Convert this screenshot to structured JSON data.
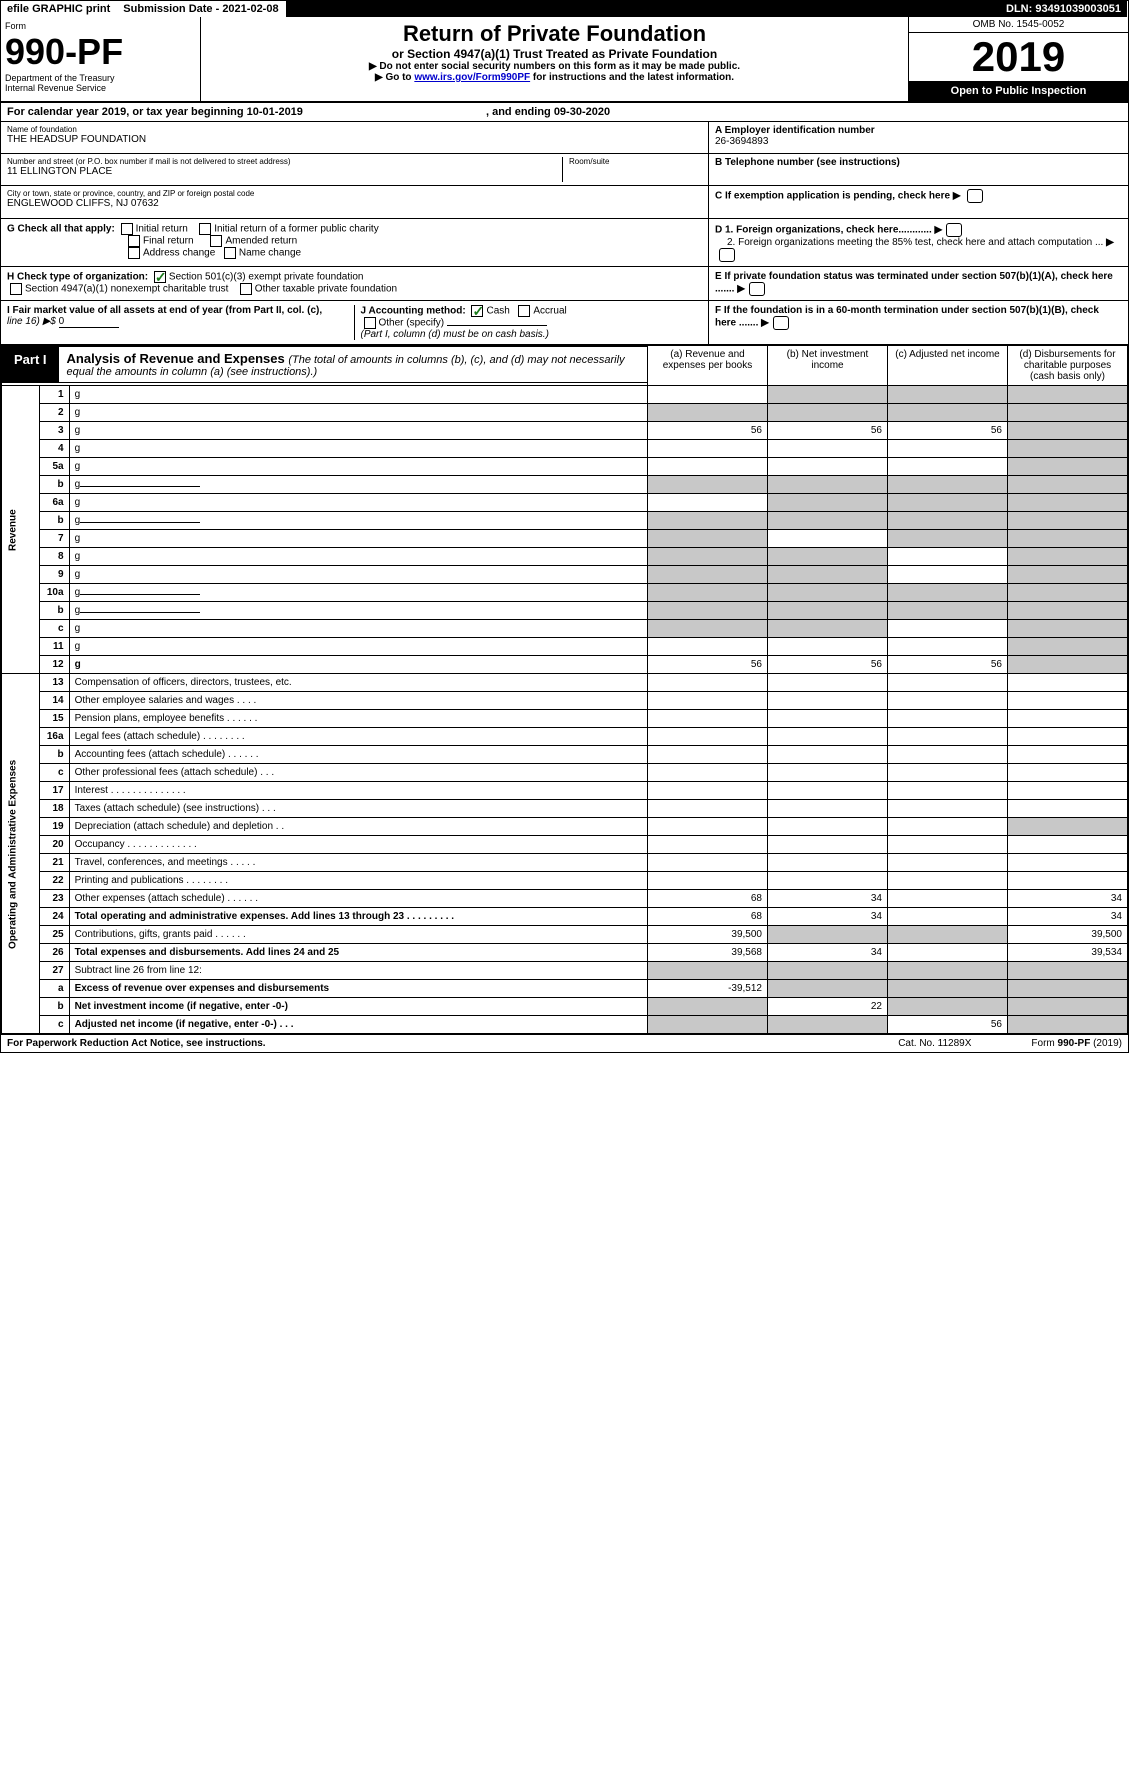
{
  "topbar": {
    "efile": "efile GRAPHIC print",
    "submission": "Submission Date - 2021-02-08",
    "dln": "DLN: 93491039003051"
  },
  "header": {
    "form_label": "Form",
    "form_number": "990-PF",
    "dept": "Department of the Treasury",
    "irs": "Internal Revenue Service",
    "title": "Return of Private Foundation",
    "subtitle": "or Section 4947(a)(1) Trust Treated as Private Foundation",
    "inst1": "▶ Do not enter social security numbers on this form as it may be made public.",
    "inst2_pre": "▶ Go to ",
    "inst2_link": "www.irs.gov/Form990PF",
    "inst2_post": " for instructions and the latest information.",
    "omb": "OMB No. 1545-0052",
    "year": "2019",
    "open": "Open to Public Inspection"
  },
  "cal": {
    "text": "For calendar year 2019, or tax year beginning 10-01-2019",
    "end": ", and ending 09-30-2020"
  },
  "id": {
    "name_label": "Name of foundation",
    "name": "THE HEADSUP FOUNDATION",
    "addr_label": "Number and street (or P.O. box number if mail is not delivered to street address)",
    "addr": "11 ELLINGTON PLACE",
    "room_label": "Room/suite",
    "city_label": "City or town, state or province, country, and ZIP or foreign postal code",
    "city": "ENGLEWOOD CLIFFS, NJ  07632",
    "ein_label": "A Employer identification number",
    "ein": "26-3694893",
    "tel_label": "B Telephone number (see instructions)",
    "c_label": "C If exemption application is pending, check here"
  },
  "checks": {
    "g_label": "G Check all that apply:",
    "g_initial": "Initial return",
    "g_initial_former": "Initial return of a former public charity",
    "g_final": "Final return",
    "g_amended": "Amended return",
    "g_addr": "Address change",
    "g_name": "Name change",
    "h_label": "H Check type of organization:",
    "h_501c3": "Section 501(c)(3) exempt private foundation",
    "h_4947": "Section 4947(a)(1) nonexempt charitable trust",
    "h_other": "Other taxable private foundation",
    "i_label": "I Fair market value of all assets at end of year (from Part II, col. (c),",
    "i_line": "line 16) ▶$ ",
    "i_val": "0",
    "j_label": "J Accounting method:",
    "j_cash": "Cash",
    "j_accrual": "Accrual",
    "j_other": "Other (specify)",
    "j_note": "(Part I, column (d) must be on cash basis.)",
    "d1": "D 1. Foreign organizations, check here............",
    "d2": "2. Foreign organizations meeting the 85% test, check here and attach computation ...",
    "e": "E  If private foundation status was terminated under section 507(b)(1)(A), check here .......",
    "f": "F  If the foundation is in a 60-month termination under section 507(b)(1)(B), check here .......",
    "arrow": "▶"
  },
  "part1": {
    "tag": "Part I",
    "title": "Analysis of Revenue and Expenses ",
    "note": "(The total of amounts in columns (b), (c), and (d) may not necessarily equal the amounts in column (a) (see instructions).)",
    "col_a": "(a)   Revenue and expenses per books",
    "col_b": "(b)  Net investment income",
    "col_c": "(c)  Adjusted net income",
    "col_d": "(d)  Disbursements for charitable purposes (cash basis only)",
    "rev_label": "Revenue",
    "exp_label": "Operating and Administrative Expenses"
  },
  "rows": [
    {
      "n": "1",
      "d": "g",
      "a": "",
      "b": "g",
      "c": "g"
    },
    {
      "n": "2",
      "d": "g",
      "a": "g",
      "b": "g",
      "c": "g",
      "bold_not": true
    },
    {
      "n": "3",
      "d": "g",
      "a": "56",
      "b": "56",
      "c": "56"
    },
    {
      "n": "4",
      "d": "g",
      "a": "",
      "b": "",
      "c": ""
    },
    {
      "n": "5a",
      "d": "g",
      "a": "",
      "b": "",
      "c": ""
    },
    {
      "n": "b",
      "d": "g",
      "a": "g",
      "b": "g",
      "c": "g",
      "inline": true
    },
    {
      "n": "6a",
      "d": "g",
      "a": "",
      "b": "g",
      "c": "g"
    },
    {
      "n": "b",
      "d": "g",
      "a": "g",
      "b": "g",
      "c": "g",
      "inline": true
    },
    {
      "n": "7",
      "d": "g",
      "a": "g",
      "b": "",
      "c": "g"
    },
    {
      "n": "8",
      "d": "g",
      "a": "g",
      "b": "g",
      "c": ""
    },
    {
      "n": "9",
      "d": "g",
      "a": "g",
      "b": "g",
      "c": ""
    },
    {
      "n": "10a",
      "d": "g",
      "a": "g",
      "b": "g",
      "c": "g",
      "inline": true
    },
    {
      "n": "b",
      "d": "g",
      "a": "g",
      "b": "g",
      "c": "g",
      "inline": true
    },
    {
      "n": "c",
      "d": "g",
      "a": "g",
      "b": "g",
      "c": ""
    },
    {
      "n": "11",
      "d": "g",
      "a": "",
      "b": "",
      "c": ""
    },
    {
      "n": "12",
      "d": "g",
      "a": "56",
      "b": "56",
      "c": "56",
      "bold": true
    }
  ],
  "exp_rows": [
    {
      "n": "13",
      "d": "Compensation of officers, directors, trustees, etc.",
      "a": "",
      "b": "",
      "c": "",
      "dd": ""
    },
    {
      "n": "14",
      "d": "Other employee salaries and wages    .   .   .   .",
      "a": "",
      "b": "",
      "c": "",
      "dd": ""
    },
    {
      "n": "15",
      "d": "Pension plans, employee benefits   .   .   .   .   .   .",
      "a": "",
      "b": "",
      "c": "",
      "dd": ""
    },
    {
      "n": "16a",
      "d": "Legal fees (attach schedule)  .   .   .   .   .   .   .   .",
      "a": "",
      "b": "",
      "c": "",
      "dd": ""
    },
    {
      "n": "b",
      "d": "Accounting fees (attach schedule)  .   .   .   .   .   .",
      "a": "",
      "b": "",
      "c": "",
      "dd": ""
    },
    {
      "n": "c",
      "d": "Other professional fees (attach schedule)    .   .   .",
      "a": "",
      "b": "",
      "c": "",
      "dd": ""
    },
    {
      "n": "17",
      "d": "Interest  .   .   .   .   .   .   .   .   .   .   .   .   .   .",
      "a": "",
      "b": "",
      "c": "",
      "dd": ""
    },
    {
      "n": "18",
      "d": "Taxes (attach schedule) (see instructions)    .   .   .",
      "a": "",
      "b": "",
      "c": "",
      "dd": ""
    },
    {
      "n": "19",
      "d": "Depreciation (attach schedule) and depletion   .   .",
      "a": "",
      "b": "",
      "c": "",
      "dd": "g"
    },
    {
      "n": "20",
      "d": "Occupancy  .   .   .   .   .   .   .   .   .   .   .   .   .",
      "a": "",
      "b": "",
      "c": "",
      "dd": ""
    },
    {
      "n": "21",
      "d": "Travel, conferences, and meetings   .   .   .   .   .",
      "a": "",
      "b": "",
      "c": "",
      "dd": ""
    },
    {
      "n": "22",
      "d": "Printing and publications  .   .   .   .   .   .   .   .",
      "a": "",
      "b": "",
      "c": "",
      "dd": ""
    },
    {
      "n": "23",
      "d": "Other expenses (attach schedule)   .   .   .   .   .   .",
      "a": "68",
      "b": "34",
      "c": "",
      "dd": "34"
    },
    {
      "n": "24",
      "d": "Total operating and administrative expenses. Add lines 13 through 23   .   .   .   .   .   .   .   .   .",
      "a": "68",
      "b": "34",
      "c": "",
      "dd": "34",
      "bold": true
    },
    {
      "n": "25",
      "d": "Contributions, gifts, grants paid    .   .   .   .   .   .",
      "a": "39,500",
      "b": "g",
      "c": "g",
      "dd": "39,500"
    },
    {
      "n": "26",
      "d": "Total expenses and disbursements. Add lines 24 and 25",
      "a": "39,568",
      "b": "34",
      "c": "",
      "dd": "39,534",
      "bold": true
    },
    {
      "n": "27",
      "d": "Subtract line 26 from line 12:",
      "a": "g",
      "b": "g",
      "c": "g",
      "dd": "g"
    },
    {
      "n": "a",
      "d": "Excess of revenue over expenses and disbursements",
      "a": "-39,512",
      "b": "g",
      "c": "g",
      "dd": "g",
      "bold": true
    },
    {
      "n": "b",
      "d": "Net investment income (if negative, enter -0-)",
      "a": "g",
      "b": "22",
      "c": "g",
      "dd": "g",
      "bold": true
    },
    {
      "n": "c",
      "d": "Adjusted net income (if negative, enter -0-)   .   .   .",
      "a": "g",
      "b": "g",
      "c": "56",
      "dd": "g",
      "bold": true
    }
  ],
  "footer": {
    "left": "For Paperwork Reduction Act Notice, see instructions.",
    "mid": "Cat. No. 11289X",
    "right": "Form 990-PF (2019)"
  }
}
